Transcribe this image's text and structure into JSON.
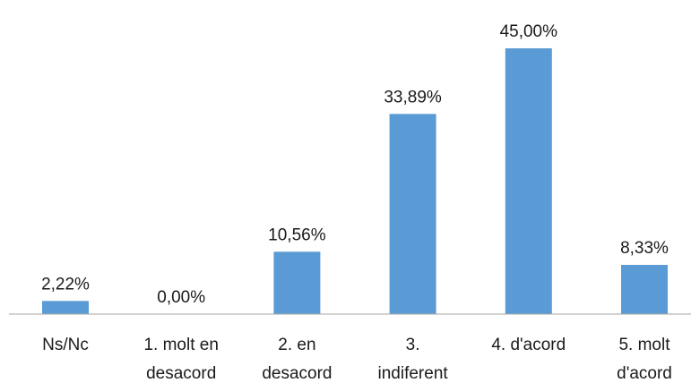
{
  "chart_data": {
    "type": "bar",
    "categories": [
      [
        "Ns/Nc"
      ],
      [
        "1. molt en",
        "desacord"
      ],
      [
        "2. en",
        "desacord"
      ],
      [
        "3.",
        "indiferent"
      ],
      [
        "4. d'acord"
      ],
      [
        "5. molt",
        "d'acord"
      ]
    ],
    "values": [
      2.22,
      0.0,
      10.56,
      33.89,
      45.0,
      8.33
    ],
    "data_labels": [
      "2,22%",
      "0,00%",
      "10,56%",
      "33,89%",
      "45,00%",
      "8,33%"
    ],
    "title": "",
    "xlabel": "",
    "ylabel": "",
    "ylim": [
      0,
      50
    ],
    "grid": false,
    "legend": "none",
    "bar_color": "#5b9bd5"
  }
}
